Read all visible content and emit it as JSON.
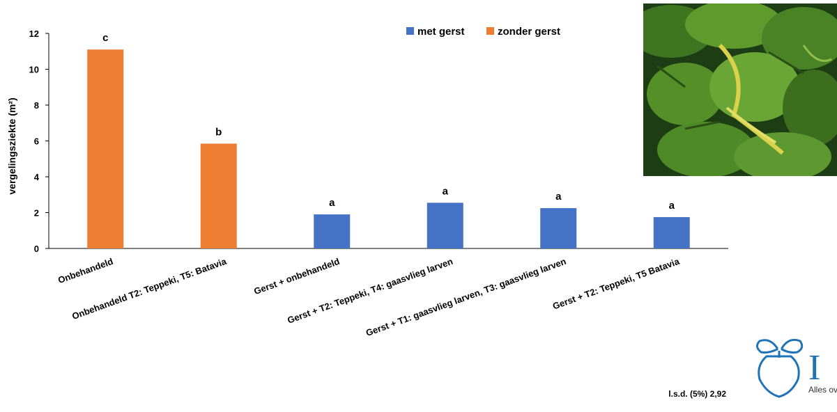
{
  "chart_data": {
    "type": "bar",
    "ylabel": "vergelingsziekte (m²)",
    "ylim": [
      0,
      12
    ],
    "yticks": [
      0,
      2,
      4,
      6,
      8,
      10,
      12
    ],
    "grid": false,
    "legend_position": "top",
    "categories": [
      "Onbehandeld",
      "Onbehandeld T2: Teppeki, T5: Batavia",
      "Gerst + onbehandeld",
      "Gerst + T2: Teppeki, T4: gaasvlieg larven",
      "Gerst + T1: gaasvlieg larven, T3: gaasvlieg larven",
      "Gerst + T2: Teppeki, T5 Batavia"
    ],
    "series": [
      {
        "name": "met gerst",
        "color": "#4472C4",
        "values": [
          null,
          null,
          1.9,
          2.55,
          2.25,
          1.75
        ]
      },
      {
        "name": "zonder gerst",
        "color": "#ED7D31",
        "values": [
          11.1,
          5.85,
          null,
          null,
          null,
          null
        ]
      }
    ],
    "significance_letters": [
      "c",
      "b",
      "a",
      "a",
      "a",
      "a"
    ],
    "annotation": "l.s.d. (5%) 2,92"
  },
  "logo": {
    "text": "IRS",
    "tagline": "Alles over suikerbieten"
  },
  "colors": {
    "leaf_dark": "#1d3d14",
    "leaf_light": "#5f9a2c",
    "leaf_yellow": "#d9d24a"
  }
}
